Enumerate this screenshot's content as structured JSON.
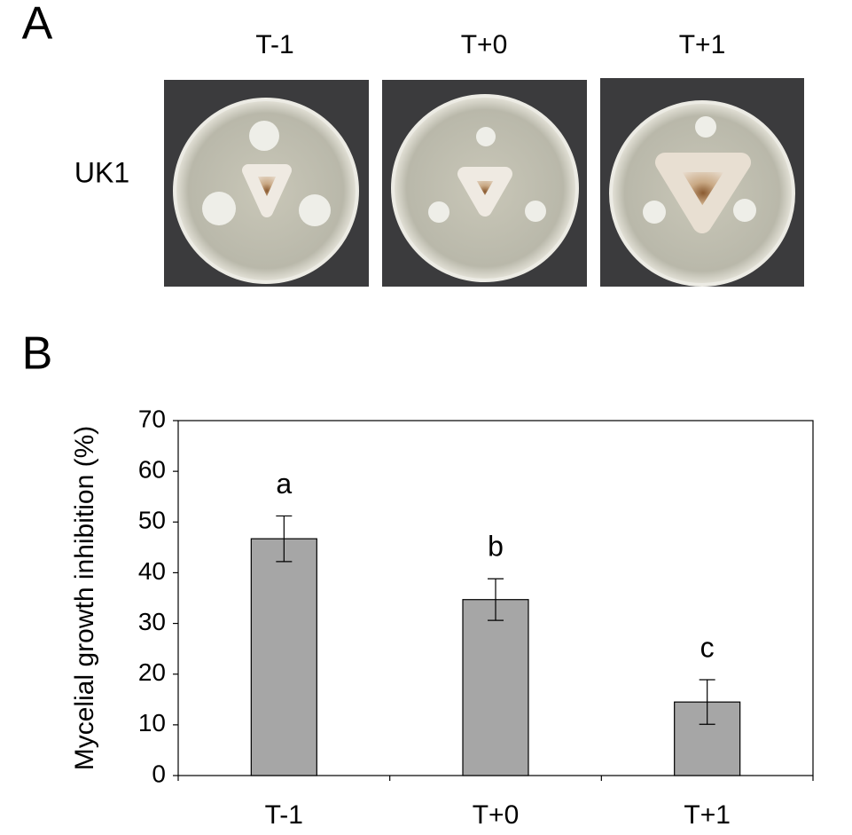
{
  "panel_a": {
    "label": "A",
    "columns": [
      "T-1",
      "T+0",
      "T+1"
    ],
    "row": "UK1"
  },
  "chart_data": {
    "type": "bar",
    "panel_label": "B",
    "ylabel": "Mycelial growth inhibition (%)",
    "categories": [
      "T-1",
      "T+0",
      "T+1"
    ],
    "values": [
      46.7,
      34.7,
      14.5
    ],
    "errors": [
      4.5,
      4.1,
      4.4
    ],
    "annotations": [
      "a",
      "b",
      "c"
    ],
    "color": "#a6a6a6",
    "ylim": [
      0,
      70
    ],
    "yticks": [
      0,
      10,
      20,
      30,
      40,
      50,
      60,
      70
    ],
    "grid": false
  }
}
